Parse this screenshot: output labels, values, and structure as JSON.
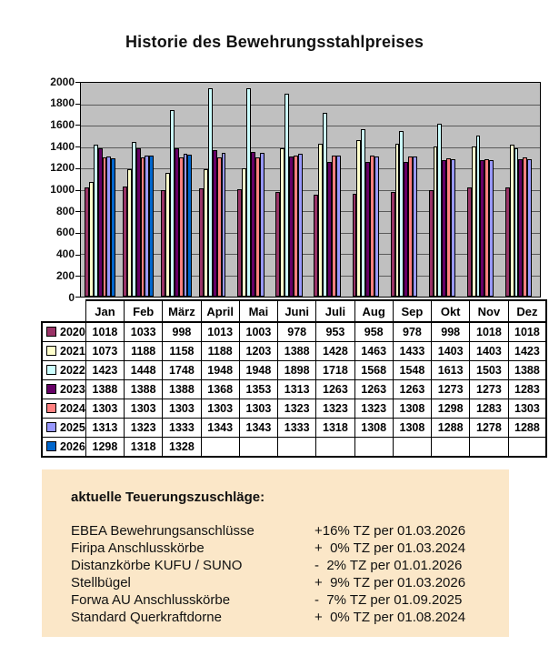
{
  "title": "Historie des Bewehrungsstahlpreises",
  "chart_data": {
    "type": "bar",
    "title": "Historie des Bewehrungsstahlpreises",
    "xlabel": "",
    "ylabel": "",
    "ylim": [
      0,
      2000
    ],
    "ytick_step": 200,
    "grid": true,
    "plot_bg_color": "#C0C0C0",
    "categories": [
      "Jan",
      "Feb",
      "März",
      "April",
      "Mai",
      "Juni",
      "Juli",
      "Aug",
      "Sep",
      "Okt",
      "Nov",
      "Dez"
    ],
    "series": [
      {
        "name": "2020",
        "color": "#993366",
        "values": [
          1018,
          1033,
          998,
          1013,
          1003,
          978,
          953,
          958,
          978,
          998,
          1018,
          1018
        ]
      },
      {
        "name": "2021",
        "color": "#FFFFCC",
        "values": [
          1073,
          1188,
          1158,
          1188,
          1203,
          1388,
          1428,
          1463,
          1433,
          1403,
          1403,
          1423
        ]
      },
      {
        "name": "2022",
        "color": "#CCFFFF",
        "values": [
          1423,
          1448,
          1748,
          1948,
          1948,
          1898,
          1718,
          1568,
          1548,
          1613,
          1503,
          1388
        ]
      },
      {
        "name": "2023",
        "color": "#660066",
        "values": [
          1388,
          1388,
          1388,
          1368,
          1353,
          1313,
          1263,
          1263,
          1263,
          1273,
          1273,
          1283
        ]
      },
      {
        "name": "2024",
        "color": "#FF8080",
        "values": [
          1303,
          1303,
          1303,
          1303,
          1303,
          1323,
          1323,
          1323,
          1308,
          1298,
          1283,
          1303
        ]
      },
      {
        "name": "2025",
        "color": "#9999FF",
        "values": [
          1313,
          1323,
          1333,
          1343,
          1343,
          1333,
          1318,
          1308,
          1308,
          1288,
          1278,
          1288
        ]
      },
      {
        "name": "2026",
        "color": "#0066CC",
        "values": [
          1298,
          1318,
          1328,
          null,
          null,
          null,
          null,
          null,
          null,
          null,
          null,
          null
        ]
      }
    ],
    "legend_position": "table-left"
  },
  "surcharges": {
    "heading": "aktuelle Teuerungszuschläge:",
    "panel_color": "#FBE7C8",
    "items": [
      {
        "label": "EBEA Bewehrungsanschlüsse",
        "value": "+16% TZ per 01.03.2026"
      },
      {
        "label": "Firipa Anschlusskörbe",
        "value": "+  0% TZ per 01.03.2024"
      },
      {
        "label": "Distanzkörbe KUFU / SUNO",
        "value": "-  2% TZ per 01.01.2026"
      },
      {
        "label": "Stellbügel",
        "value": "+  9% TZ per 01.03.2026"
      },
      {
        "label": "Forwa AU Anschlusskörbe",
        "value": "-  7% TZ per 01.09.2025"
      },
      {
        "label": "Standard Querkraftdorne",
        "value": "+  0% TZ per 01.08.2024"
      }
    ]
  }
}
